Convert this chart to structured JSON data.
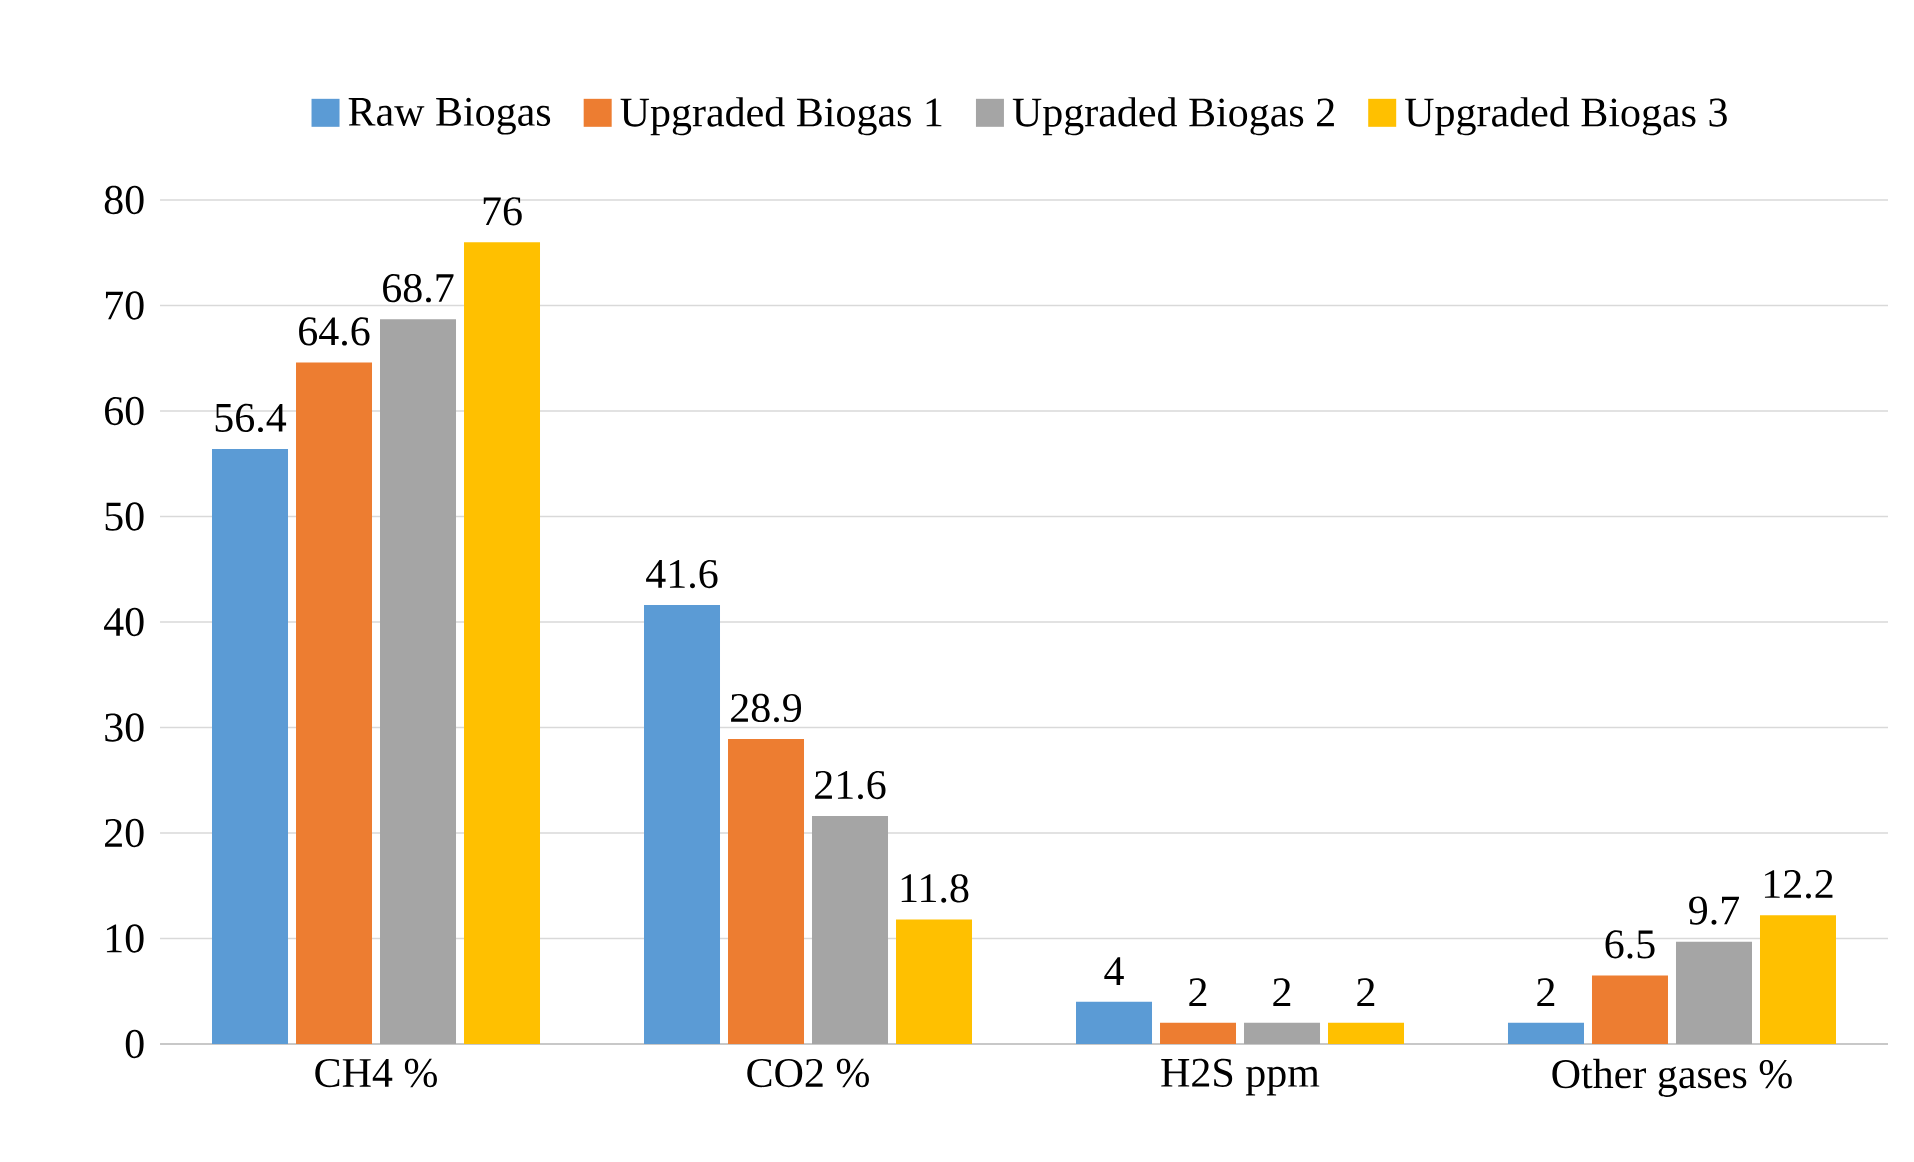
{
  "chart_data": {
    "type": "bar",
    "categories": [
      "CH4 %",
      "CO2 %",
      "H2S ppm",
      "Other gases %"
    ],
    "series": [
      {
        "name": "Raw Biogas",
        "color": "#5b9bd5",
        "values": [
          56.4,
          41.6,
          4,
          2
        ]
      },
      {
        "name": "Upgraded Biogas 1",
        "color": "#ed7d31",
        "values": [
          64.6,
          28.9,
          2,
          6.5
        ]
      },
      {
        "name": "Upgraded Biogas 2",
        "color": "#a5a5a5",
        "values": [
          68.7,
          21.6,
          2,
          9.7
        ]
      },
      {
        "name": "Upgraded Biogas 3",
        "color": "#ffc000",
        "values": [
          76,
          11.8,
          2,
          12.2
        ]
      }
    ],
    "ylim": [
      0,
      80
    ],
    "yticks": [
      0,
      10,
      20,
      30,
      40,
      50,
      60,
      70,
      80
    ],
    "grid": "y",
    "legend": "top",
    "data_labels": true
  }
}
